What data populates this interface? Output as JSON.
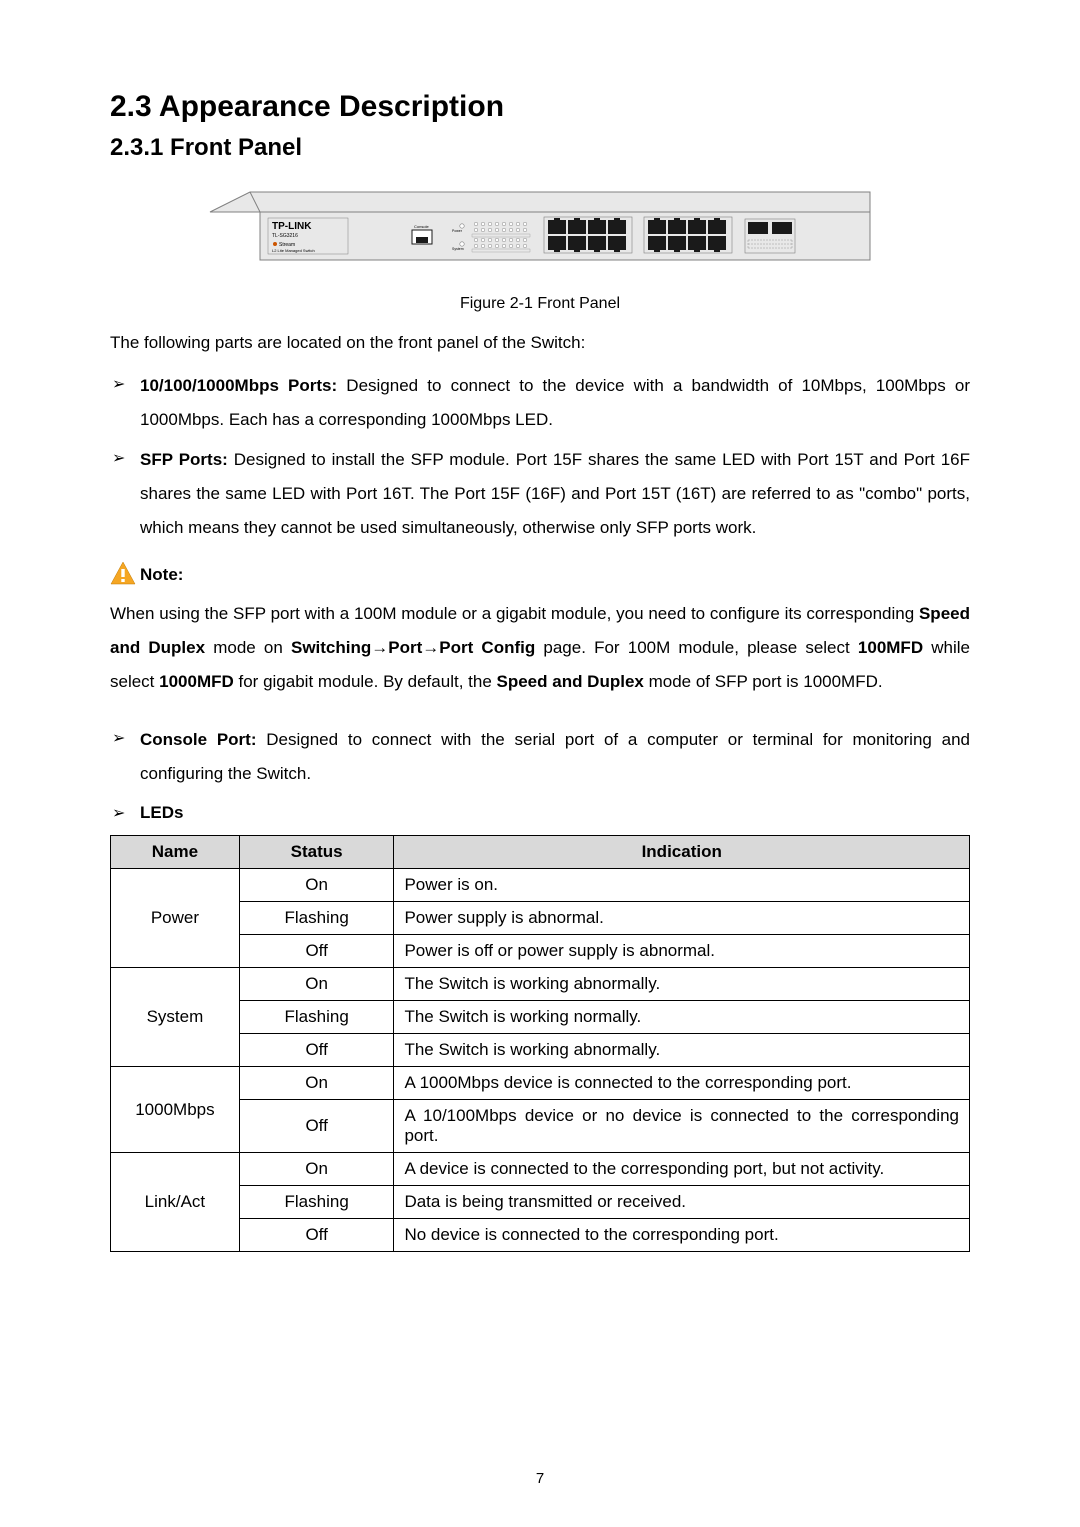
{
  "section": {
    "number": "2.3",
    "title": "Appearance Description",
    "full": "2.3  Appearance Description"
  },
  "subsection": {
    "number": "2.3.1",
    "title": "Front Panel",
    "full": "2.3.1 Front Panel"
  },
  "figure": {
    "caption": "Figure 2-1 Front Panel",
    "brand": "TP-LINK",
    "model": "TL-SG3216",
    "series1": "JetStream",
    "series2": "L2 Lite Managed Switch",
    "console_label": "Console",
    "power_label": "Power",
    "system_label": "System"
  },
  "intro": "The following parts are located on the front panel of the Switch:",
  "bullets1": [
    {
      "strong": "10/100/1000Mbps Ports:",
      "text": " Designed to connect to the device with a bandwidth of 10Mbps, 100Mbps or 1000Mbps. Each has a corresponding 1000Mbps LED."
    },
    {
      "strong": "SFP Ports:",
      "text": " Designed to install the SFP module. Port 15F shares the same LED with Port 15T and Port 16F shares the same LED with Port 16T. The Port 15F (16F) and Port 15T (16T) are referred to as \"combo\" ports, which means they cannot be used simultaneously, otherwise only SFP ports work."
    }
  ],
  "note": {
    "label": "Note:",
    "body_parts": {
      "p1": "When using the SFP port with a 100M module or a gigabit module, you need to configure its corresponding ",
      "b1": "Speed and Duplex",
      "p2": " mode on ",
      "b2": "Switching→Port→Port Config",
      "p3": " page. For 100M module, please select ",
      "b3": "100MFD",
      "p4": " while select ",
      "b4": "1000MFD",
      "p5": " for gigabit module. By default, the ",
      "b5": "Speed and Duplex",
      "p6": " mode of SFP port is 1000MFD."
    }
  },
  "bullets2": [
    {
      "strong": "Console Port:",
      "text": " Designed to connect with the serial port of a computer or terminal for monitoring and configuring the Switch."
    }
  ],
  "leds_label": "LEDs",
  "table": {
    "headers": {
      "name": "Name",
      "status": "Status",
      "indication": "Indication"
    },
    "col_widths": {
      "name": "15%",
      "status": "18%",
      "indication": "67%"
    },
    "header_bg": "#d9d9d9",
    "border_color": "#000000",
    "groups": [
      {
        "name": "Power",
        "rows": [
          {
            "status": "On",
            "indication": "Power is on.",
            "justify": false
          },
          {
            "status": "Flashing",
            "indication": "Power supply is abnormal.",
            "justify": false
          },
          {
            "status": "Off",
            "indication": "Power is off or power supply is abnormal.",
            "justify": false
          }
        ]
      },
      {
        "name": "System",
        "rows": [
          {
            "status": "On",
            "indication": "The Switch is working abnormally.",
            "justify": false
          },
          {
            "status": "Flashing",
            "indication": "The Switch is working normally.",
            "justify": false
          },
          {
            "status": "Off",
            "indication": "The Switch is working abnormally.",
            "justify": false
          }
        ]
      },
      {
        "name": "1000Mbps",
        "rows": [
          {
            "status": "On",
            "indication": "A 1000Mbps device is connected to the corresponding port.",
            "justify": true
          },
          {
            "status": "Off",
            "indication": "A 10/100Mbps device or no device is connected to the corresponding port.",
            "justify": true
          }
        ]
      },
      {
        "name": "Link/Act",
        "rows": [
          {
            "status": "On",
            "indication": "A device is connected to the corresponding port, but not activity.",
            "justify": true
          },
          {
            "status": "Flashing",
            "indication": "Data is being transmitted or received.",
            "justify": false
          },
          {
            "status": "Off",
            "indication": "No device is connected to the corresponding port.",
            "justify": false
          }
        ]
      }
    ]
  },
  "page_number": "7",
  "colors": {
    "text": "#000000",
    "panel_body": "#e8e8e8",
    "panel_stroke": "#808080",
    "port_fill": "#1a1a1a",
    "led_fill": "#ffffff",
    "note_icon_fill": "#f5a623",
    "note_icon_mark": "#ffffff"
  }
}
